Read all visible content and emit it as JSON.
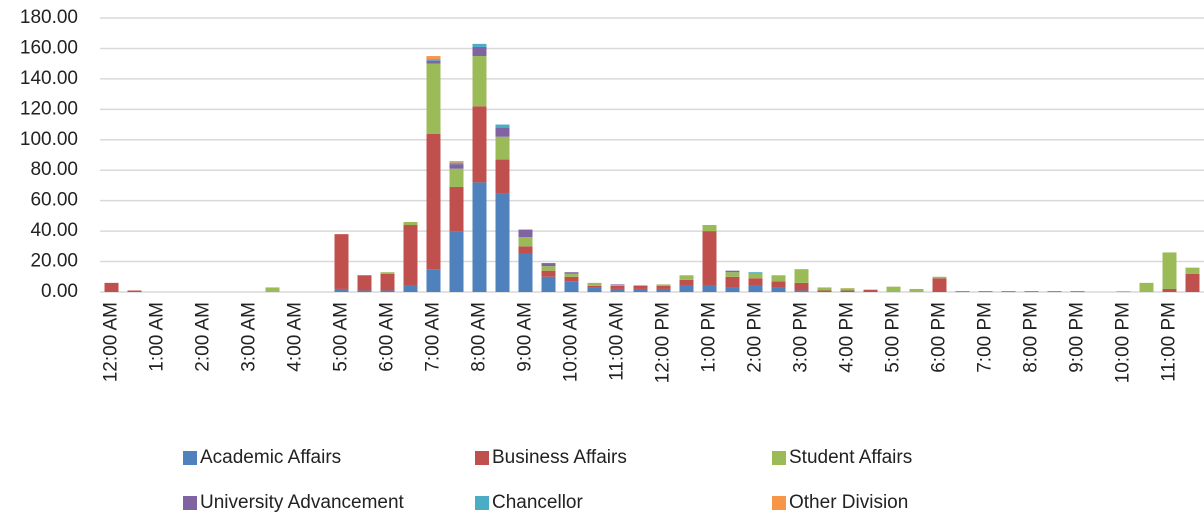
{
  "chart_data": {
    "type": "stacked_bar",
    "categories": [
      "12:00 AM",
      null,
      "1:00 AM",
      null,
      "2:00 AM",
      null,
      "3:00 AM",
      null,
      "4:00 AM",
      null,
      "5:00 AM",
      null,
      "6:00 AM",
      null,
      "7:00 AM",
      null,
      "8:00 AM",
      null,
      "9:00 AM",
      null,
      "10:00 AM",
      null,
      "11:00 AM",
      null,
      "12:00 PM",
      null,
      "1:00 PM",
      null,
      "2:00 PM",
      null,
      "3:00 PM",
      null,
      "4:00 PM",
      null,
      "5:00 PM",
      null,
      "6:00 PM",
      null,
      "7:00 PM",
      null,
      "8:00 PM",
      null,
      "9:00 PM",
      null,
      "10:00 PM",
      null,
      "11:00 PM",
      null
    ],
    "series": [
      {
        "name": "Academic Affairs",
        "color": "#4f81bd",
        "values": [
          0,
          0,
          0,
          0,
          0,
          0,
          0,
          0,
          0,
          0,
          2,
          1,
          1,
          4,
          15,
          40,
          72,
          65,
          25,
          10,
          7,
          3,
          2,
          2,
          2,
          4,
          4,
          3,
          4,
          3,
          1,
          0,
          0,
          0,
          0,
          0,
          0,
          0,
          0,
          0,
          0,
          0,
          0,
          0,
          0,
          0,
          0,
          0
        ]
      },
      {
        "name": "Business Affairs",
        "color": "#c0504d",
        "values": [
          6,
          1,
          0,
          0,
          0,
          0,
          0,
          0,
          0,
          0,
          36,
          10,
          11,
          40,
          89,
          29,
          50,
          22,
          5,
          4,
          3,
          1,
          2,
          2,
          2,
          4,
          36,
          7,
          5,
          4,
          5,
          1,
          1,
          1.5,
          0,
          0,
          9,
          0.5,
          0.5,
          0.5,
          0.5,
          0.5,
          0.5,
          0,
          0,
          0,
          2,
          12
        ]
      },
      {
        "name": "Student Affairs",
        "color": "#9bbb59",
        "values": [
          0,
          0,
          0,
          0,
          0,
          0,
          0,
          3,
          0,
          0,
          0,
          0,
          1,
          2,
          46,
          12,
          33,
          15,
          6,
          3,
          2,
          2,
          0.5,
          0.5,
          1,
          3,
          4,
          3,
          3,
          4,
          9,
          2,
          1.5,
          0,
          3.5,
          2,
          1,
          0,
          0,
          0,
          0,
          0,
          0,
          0,
          0.5,
          6,
          24,
          4
        ]
      },
      {
        "name": "University Advancement",
        "color": "#8064a2",
        "values": [
          0,
          0,
          0,
          0,
          0,
          0,
          0,
          0,
          0,
          0,
          0,
          0,
          0,
          0,
          2,
          3,
          6,
          6,
          5,
          2,
          1,
          0,
          0.5,
          0,
          0,
          0,
          0,
          1,
          0,
          0,
          0,
          0,
          0,
          0,
          0,
          0,
          0,
          0,
          0,
          0,
          0,
          0,
          0,
          0,
          0,
          0,
          0,
          0
        ]
      },
      {
        "name": "Chancellor",
        "color": "#4bacc6",
        "values": [
          0,
          0,
          0,
          0,
          0,
          0,
          0,
          0,
          0,
          0,
          0,
          0,
          0,
          0,
          1,
          1,
          2,
          2,
          0,
          0,
          0,
          0,
          0,
          0,
          0,
          0,
          0,
          0,
          1,
          0,
          0,
          0,
          0,
          0,
          0,
          0,
          0,
          0,
          0,
          0,
          0,
          0,
          0,
          0,
          0,
          0,
          0,
          0
        ]
      },
      {
        "name": "Other Division",
        "color": "#f79646",
        "values": [
          0,
          0,
          0,
          0,
          0,
          0,
          0,
          0,
          0,
          0,
          0,
          0,
          0,
          0,
          2,
          1,
          0,
          0,
          0,
          0,
          0,
          0,
          0,
          0,
          0,
          0,
          0,
          0,
          0,
          0,
          0,
          0,
          0,
          0,
          0,
          0,
          0,
          0,
          0,
          0,
          0,
          0,
          0,
          0,
          0,
          0,
          0,
          0
        ]
      }
    ],
    "ylim": [
      0,
      180
    ],
    "yticks": [
      {
        "value": 0,
        "label": "0.00"
      },
      {
        "value": 20,
        "label": "20.00"
      },
      {
        "value": 40,
        "label": "40.00"
      },
      {
        "value": 60,
        "label": "60.00"
      },
      {
        "value": 80,
        "label": "80.00"
      },
      {
        "value": 100,
        "label": "100.00"
      },
      {
        "value": 120,
        "label": "120.00"
      },
      {
        "value": 140,
        "label": "140.00"
      },
      {
        "value": 160,
        "label": "160.00"
      },
      {
        "value": 180,
        "label": "180.00"
      }
    ],
    "grid": true
  }
}
